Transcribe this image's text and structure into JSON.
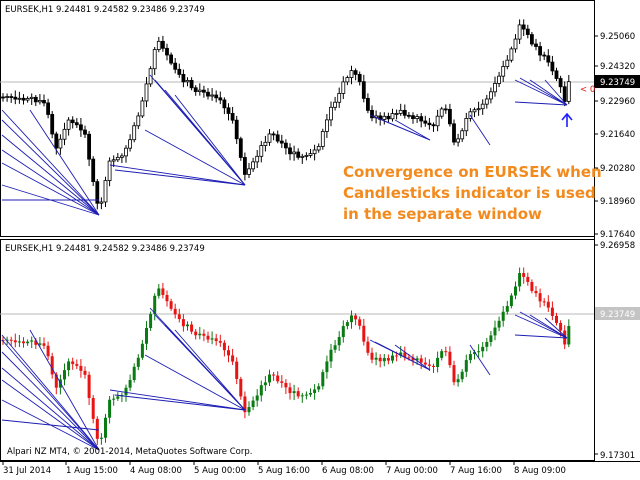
{
  "upper": {
    "symbol_info": "EURSEK,H1  9.24481  9.24582  9.23486  9.23749",
    "current_price": "9.23749",
    "price_ticks": [
      "9.25060",
      "9.24320",
      "9.22960",
      "9.21640",
      "9.20280",
      "9.18960",
      "9.17640"
    ],
    "right_marker": "< 0",
    "annotation": [
      "Convergence on EURSEK when",
      "Candlesticks indicator is used",
      "in the separate window"
    ]
  },
  "lower": {
    "symbol_info": "EURSEK,H1  9.24481  9.24582  9.23486  9.23749",
    "current_price": "9.23749",
    "price_ticks": [
      "9.26958",
      "9.17301"
    ],
    "copyright": "Alpari NZ MT4, © 2001-2014, MetaQuotes Software Corp."
  },
  "time_axis": [
    "31 Jul 2014",
    "1 Aug 15:00",
    "4 Aug 08:00",
    "5 Aug 00:00",
    "5 Aug 16:00",
    "6 Aug 08:00",
    "7 Aug 00:00",
    "7 Aug 16:00",
    "8 Aug 09:00"
  ],
  "colors": {
    "bull": "#0a7a12",
    "bear": "#e81414",
    "wick": "#000000",
    "trend": "#1c1cb4",
    "price_line": "#b9b9b9",
    "arrow": "#1c1cff",
    "annotation": "#f28a1e",
    "current_label_bg": "#000000",
    "lower_label_bg": "#c4c4c4"
  }
}
